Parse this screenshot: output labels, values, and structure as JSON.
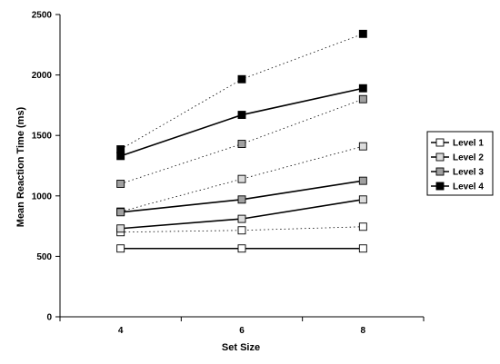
{
  "chart_data": {
    "type": "line",
    "title": "",
    "xlabel": "Set Size",
    "ylabel": "Mean Reaction Time (ms)",
    "x": [
      4,
      6,
      8
    ],
    "x_tick_labels": [
      "4",
      "6",
      "8"
    ],
    "ylim": [
      0,
      2500
    ],
    "y_ticks": [
      0,
      500,
      1000,
      1500,
      2000,
      2500
    ],
    "y_tick_labels": [
      "0",
      "500",
      "1000",
      "1500",
      "2000",
      "2500"
    ],
    "grid": false,
    "legend_position": "right",
    "legend_entries": [
      "Level 1",
      "Level 2",
      "Level 3",
      "Level 4"
    ],
    "series": [
      {
        "name": "Level 1",
        "style": "solid",
        "marker_fill": "#ffffff",
        "values": [
          565,
          565,
          565
        ]
      },
      {
        "name": "Level 2",
        "style": "solid",
        "marker_fill": "#dcdcdc",
        "values": [
          730,
          810,
          970
        ]
      },
      {
        "name": "Level 3",
        "style": "solid",
        "marker_fill": "#a0a0a0",
        "values": [
          865,
          970,
          1125
        ]
      },
      {
        "name": "Level 4",
        "style": "solid",
        "marker_fill": "#000000",
        "values": [
          1330,
          1670,
          1890
        ]
      },
      {
        "style": "dotted",
        "marker_fill": "#ffffff",
        "values": [
          700,
          715,
          745
        ]
      },
      {
        "style": "dotted",
        "marker_fill": "#dcdcdc",
        "values": [
          870,
          1140,
          1410
        ]
      },
      {
        "style": "dotted",
        "marker_fill": "#a0a0a0",
        "values": [
          1100,
          1430,
          1800
        ]
      },
      {
        "style": "dotted",
        "marker_fill": "#000000",
        "values": [
          1385,
          1965,
          2340
        ]
      }
    ]
  }
}
